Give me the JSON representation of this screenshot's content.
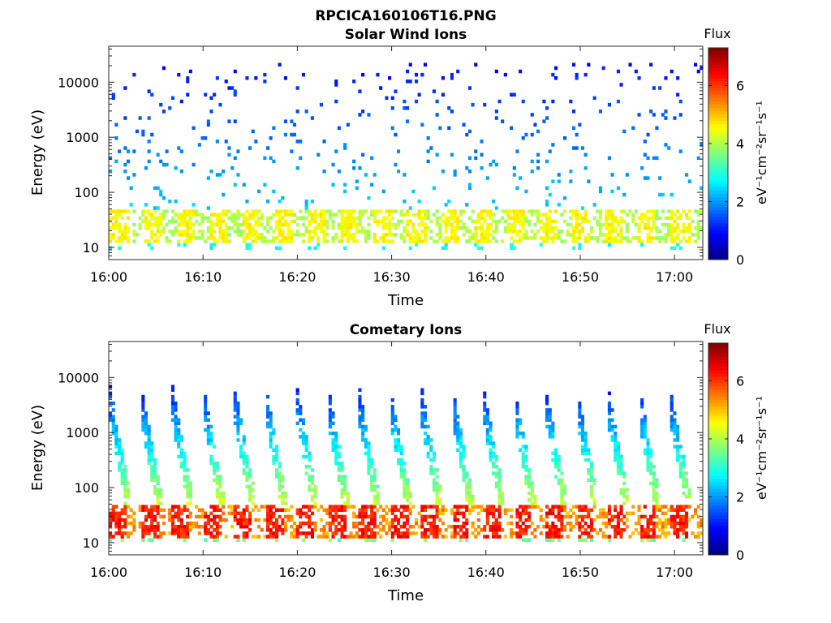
{
  "figure_title": "RPCICA160106T16.PNG",
  "colormap": [
    "#00007f",
    "#0000ff",
    "#007fff",
    "#00ffff",
    "#7fff7f",
    "#ffff00",
    "#ff7f00",
    "#ff0000",
    "#7f0000"
  ],
  "chart_data": [
    {
      "type": "heatmap",
      "title": "Solar Wind Ions",
      "xlabel": "Time",
      "ylabel": "Energy (eV)",
      "x_range": [
        "16:00",
        "17:03"
      ],
      "x_ticks": [
        "16:00",
        "16:10",
        "16:20",
        "16:30",
        "16:40",
        "16:50",
        "17:00"
      ],
      "y_scale": "log",
      "y_range": [
        6,
        45000
      ],
      "y_ticks": [
        10,
        100,
        1000,
        10000
      ],
      "y_tick_labels": [
        "10",
        "100",
        "1000",
        "10000"
      ],
      "colorbar": {
        "label": "eV⁻¹cm⁻²sr⁻¹s⁻¹",
        "header": "Flux",
        "range": [
          0,
          7.3
        ],
        "ticks": [
          0,
          2,
          4,
          6
        ],
        "tick_labels": [
          "0",
          "2",
          "4",
          "6"
        ]
      },
      "sweep_period_min": 3.5,
      "pattern": {
        "low_band_eV": [
          12,
          45
        ],
        "low_band_flux": [
          3.2,
          4.8
        ],
        "sparse_flux": [
          1.0,
          2.6
        ],
        "sparse_max_eV": 20000
      }
    },
    {
      "type": "heatmap",
      "title": "Cometary Ions",
      "xlabel": "Time",
      "ylabel": "Energy (eV)",
      "x_range": [
        "16:00",
        "17:03"
      ],
      "x_ticks": [
        "16:00",
        "16:10",
        "16:20",
        "16:30",
        "16:40",
        "16:50",
        "17:00"
      ],
      "y_scale": "log",
      "y_range": [
        6,
        45000
      ],
      "y_ticks": [
        10,
        100,
        1000,
        10000
      ],
      "y_tick_labels": [
        "10",
        "100",
        "1000",
        "10000"
      ],
      "colorbar": {
        "label": "eV⁻¹cm⁻²sr⁻¹s⁻¹",
        "header": "Flux",
        "range": [
          0,
          7.3
        ],
        "ticks": [
          0,
          2,
          4,
          6
        ],
        "tick_labels": [
          "0",
          "2",
          "4",
          "6"
        ]
      },
      "sweep_period_min": 3.3,
      "pattern": {
        "low_band_eV": [
          12,
          45
        ],
        "low_band_flux": [
          4.0,
          6.6
        ],
        "sweep_top_eV": 3000,
        "sweep_flux": [
          1.5,
          4.2
        ]
      }
    }
  ]
}
